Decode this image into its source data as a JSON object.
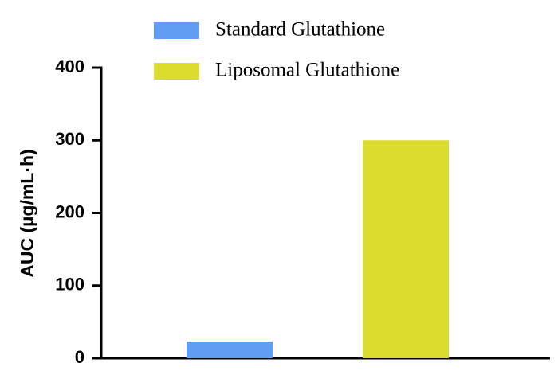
{
  "chart_data": {
    "type": "bar",
    "y_label": "AUC (µg/mL·h)",
    "categories": [
      null
    ],
    "series": [
      {
        "name": "Standard Glutathione",
        "color": "#629df4",
        "values": [
          23
        ]
      },
      {
        "name": "Liposomal Glutathione",
        "color": "#dcdc2e",
        "values": [
          300
        ]
      }
    ],
    "ylim": [
      0,
      400
    ],
    "yticks": [
      0,
      100,
      200,
      300,
      400
    ],
    "grid": false
  }
}
